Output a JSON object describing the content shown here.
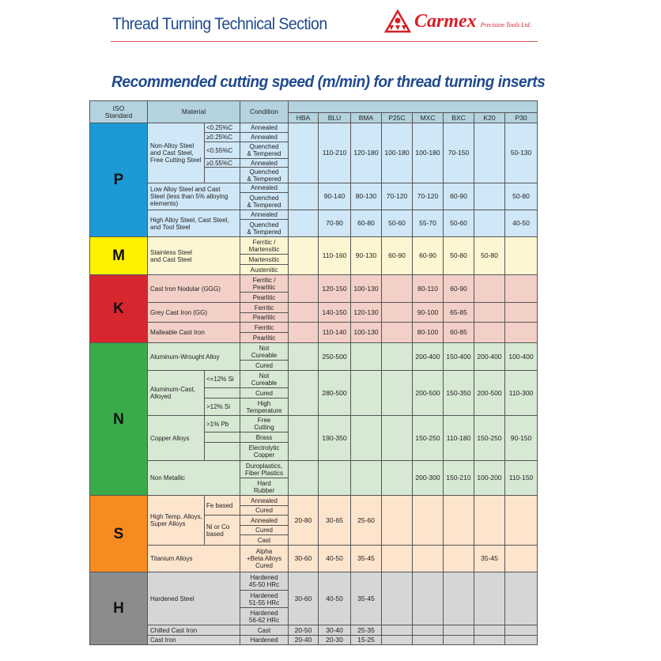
{
  "header": {
    "section_title": "Thread Turning Technical Section",
    "logo_name": "Carmex",
    "logo_subtitle": "Precision Tools Ltd.",
    "brand_color": "#d71f26",
    "title_color": "#1f4a8e"
  },
  "title": "Recommended cutting speed (m/min) for thread turning inserts",
  "table": {
    "headers": {
      "iso": "ISO\nStandard",
      "material": "Material",
      "condition": "Condition"
    },
    "grades": [
      "HBA",
      "BLU",
      "BMA",
      "P25C",
      "MXC",
      "BXC",
      "K20",
      "P30"
    ],
    "header_color": "#b4d3de",
    "groups": [
      {
        "iso": "P",
        "color": "#1b9ad7",
        "bg": "#cfe7f6",
        "materials": [
          {
            "name": "Non-Alloy Steel\nand Cast Steel,\nFree Cutting Steel",
            "subs": [
              {
                "label": "<0.25%C",
                "conditions": [
                  "Annealed"
                ]
              },
              {
                "label": "≥0.25%C",
                "conditions": [
                  "Annealed"
                ]
              },
              {
                "label": "<0.55%C",
                "conditions": [
                  "Quenched\n& Tempered"
                ]
              },
              {
                "label": "≥0.55%C",
                "conditions": [
                  "Annealed"
                ]
              },
              {
                "label": "",
                "conditions": [
                  "Quenched\n& Tempered"
                ]
              }
            ],
            "speeds": [
              "",
              "110-210",
              "120-180",
              "100-180",
              "100-180",
              "70-150",
              "",
              "50-130"
            ]
          },
          {
            "name": "Low Alloy Steel and Cast\nSteel (less than 5% alloying\nelements)",
            "conditions": [
              "Annealed",
              "Quenched\n& Tempered"
            ],
            "speeds": [
              "",
              "90-140",
              "80-130",
              "70-120",
              "70-120",
              "60-90",
              "",
              "50-80"
            ]
          },
          {
            "name": "High Alloy Steel, Cast Steel,\nand Tool Steel",
            "conditions": [
              "Annealed",
              "Quenched\n& Tempered"
            ],
            "speeds": [
              "",
              "70-90",
              "60-80",
              "50-60",
              "55-70",
              "50-60",
              "",
              "40-50"
            ]
          }
        ]
      },
      {
        "iso": "M",
        "color": "#fff200",
        "bg": "#fdf6d2",
        "materials": [
          {
            "name": "Stainless Steel\nand Cast Steel",
            "conditions": [
              "Ferritic /\nMartensitic",
              "Martensitic",
              "Austenitic"
            ],
            "speeds": [
              "",
              "110-160",
              "90-130",
              "60-90",
              "60-90",
              "50-80",
              "50-80",
              ""
            ]
          }
        ]
      },
      {
        "iso": "K",
        "color": "#d7262e",
        "bg": "#f2d0c7",
        "materials": [
          {
            "name": "Cast Iron Nodular (GGG)",
            "conditions": [
              "Ferritic /\nPearlitic",
              "Pearlitic"
            ],
            "speeds": [
              "",
              "120-150",
              "100-130",
              "",
              "80-110",
              "60-90",
              "",
              ""
            ]
          },
          {
            "name": "Grey Cast Iron (GG)",
            "conditions": [
              "Ferritic",
              "Pearlitic"
            ],
            "speeds": [
              "",
              "140-150",
              "120-130",
              "",
              "90-100",
              "65-85",
              "",
              ""
            ]
          },
          {
            "name": "Malleable Cast Iron",
            "conditions": [
              "Ferritic",
              "Pearlitic"
            ],
            "speeds": [
              "",
              "110-140",
              "100-130",
              "",
              "80-100",
              "60-85",
              "",
              ""
            ]
          }
        ]
      },
      {
        "iso": "N",
        "color": "#3aaa4a",
        "bg": "#d6e9d3",
        "materials": [
          {
            "name": "Aluminum-Wrought Alloy",
            "conditions": [
              "Not\nCureable",
              "Cured"
            ],
            "speeds": [
              "",
              "250-500",
              "",
              "",
              "200-400",
              "150-400",
              "200-400",
              "100-400"
            ]
          },
          {
            "name": "Aluminum-Cast,\nAlloyed",
            "subs": [
              {
                "label": "<=12% Si",
                "conditions": [
                  "Not\nCureable"
                ]
              },
              {
                "label": "",
                "conditions": [
                  "Cured"
                ]
              },
              {
                "label": ">12% Si",
                "conditions": [
                  "High\nTemperature"
                ]
              }
            ],
            "speeds": [
              "",
              "280-500",
              "",
              "",
              "200-500",
              "150-350",
              "200-500",
              "110-300"
            ]
          },
          {
            "name": "Copper Alloys",
            "subs": [
              {
                "label": ">1% Pb",
                "conditions": [
                  "Free\nCutting"
                ]
              },
              {
                "label": "",
                "conditions": [
                  "Brass"
                ]
              },
              {
                "label": "",
                "conditions": [
                  "Electrolytic\nCopper"
                ]
              }
            ],
            "speeds": [
              "",
              "190-350",
              "",
              "",
              "150-250",
              "110-180",
              "150-250",
              "90-150"
            ]
          },
          {
            "name": "Non Metallic",
            "conditions": [
              "Duroplastics,\nFiber Plastics",
              "Hard\nRubber"
            ],
            "speeds": [
              "",
              "",
              "",
              "",
              "200-300",
              "150-210",
              "100-200",
              "110-150"
            ]
          }
        ]
      },
      {
        "iso": "S",
        "color": "#f68b1f",
        "bg": "#fde4cd",
        "materials": [
          {
            "name": "High Temp. Alloys,\nSuper Alloys",
            "subs": [
              {
                "label": "Fe based",
                "conditions": [
                  "Annealed",
                  "Cured"
                ]
              },
              {
                "label": "Ni or Co\nbased",
                "conditions": [
                  "Annealed",
                  "Cured",
                  "Cast"
                ]
              }
            ],
            "speeds": [
              "20-80",
              "30-65",
              "25-60",
              "",
              "",
              "",
              "",
              ""
            ]
          },
          {
            "name": "Titanium Alloys",
            "conditions": [
              "Alpha\n+Beta Alloys\nCured"
            ],
            "speeds": [
              "30-60",
              "40-50",
              "35-45",
              "",
              "",
              "",
              "35-45",
              ""
            ]
          }
        ]
      },
      {
        "iso": "H",
        "color": "#8b8c8e",
        "bg": "#d5d6d8",
        "materials": [
          {
            "name": "Hardened Steel",
            "conditions": [
              "Hardened\n45-50 HRc",
              "Hardened\n51-55 HRc",
              "Hardened\n56-62 HRc"
            ],
            "speeds": [
              "30-60",
              "40-50",
              "35-45",
              "",
              "",
              "",
              "",
              ""
            ]
          },
          {
            "name": "Chilled Cast Iron",
            "conditions": [
              "Cast"
            ],
            "speeds": [
              "20-50",
              "30-40",
              "25-35",
              "",
              "",
              "",
              "",
              ""
            ]
          },
          {
            "name": "Cast Iron",
            "conditions": [
              "Hardened"
            ],
            "speeds": [
              "20-40",
              "20-30",
              "15-25",
              "",
              "",
              "",
              "",
              ""
            ]
          }
        ]
      }
    ]
  }
}
